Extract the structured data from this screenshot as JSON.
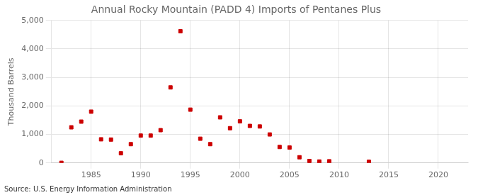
{
  "chart_data": {
    "type": "scatter",
    "title": "Annual Rocky Mountain (PADD 4) Imports of Pentanes Plus",
    "ylabel": "Thousand Barrels",
    "annotations": [
      {
        "text": "Source: U.S. Energy Information Administration"
      }
    ],
    "x": [
      1982,
      1983,
      1984,
      1985,
      1986,
      1987,
      1988,
      1989,
      1990,
      1991,
      1992,
      1993,
      1994,
      1995,
      1996,
      1997,
      1998,
      1999,
      2000,
      2001,
      2002,
      2003,
      2004,
      2005,
      2006,
      2007,
      2008,
      2009,
      2013
    ],
    "values": [
      5,
      1250,
      1450,
      1800,
      830,
      820,
      340,
      660,
      960,
      960,
      1150,
      2650,
      4620,
      1870,
      850,
      660,
      1600,
      1220,
      1460,
      1300,
      1280,
      1000,
      560,
      540,
      200,
      70,
      50,
      60,
      40
    ],
    "color": "#cc0000",
    "marker": "square",
    "xlim": [
      1981,
      2023
    ],
    "xticks": [
      1985,
      1990,
      1995,
      2000,
      2005,
      2010,
      2015,
      2020
    ],
    "ylim": [
      0,
      5000
    ],
    "yticks": [
      0,
      {
        "value": 1000,
        "label": "1,000"
      },
      {
        "value": 2000,
        "label": "2,000"
      },
      {
        "value": 3000,
        "label": "3,000"
      },
      {
        "value": 4000,
        "label": "4,000"
      },
      {
        "value": 5000,
        "label": "5,000"
      }
    ],
    "grid": true
  }
}
